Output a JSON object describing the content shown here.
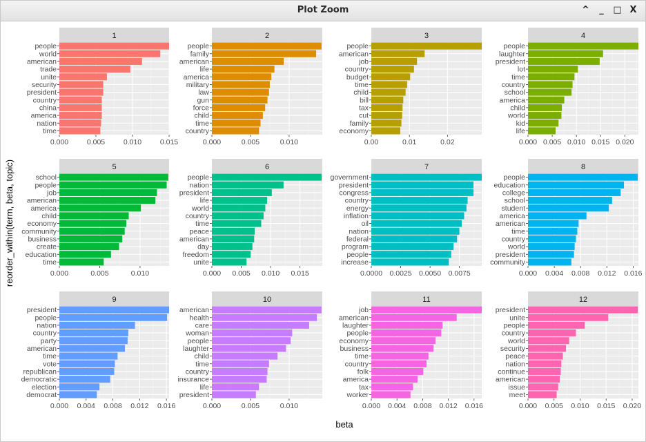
{
  "window": {
    "title": "Plot Zoom"
  },
  "controls": {
    "collapse": "^",
    "minimize": "_",
    "maximize": "□",
    "close": "X"
  },
  "chart_data": {
    "type": "bar",
    "orientation": "horizontal",
    "facet_layout": "3 rows x 4 columns, free scales",
    "xlabel": "beta",
    "ylabel": "reorder_within(term, beta, topic)",
    "grid": true,
    "legend": "none",
    "panels": [
      {
        "topic": "1",
        "color": "#F8766D",
        "xlim": [
          0,
          0.015
        ],
        "ticks": [
          {
            "v": 0,
            "label": "0.000"
          },
          {
            "v": 0.005,
            "label": "0.005"
          },
          {
            "v": 0.01,
            "label": "0.010"
          },
          {
            "v": 0.015,
            "label": "0.015"
          }
        ],
        "terms": [
          "people",
          "world",
          "american",
          "trade",
          "unite",
          "security",
          "president",
          "country",
          "china",
          "america",
          "nation",
          "time"
        ],
        "values": [
          0.0152,
          0.0138,
          0.0113,
          0.0097,
          0.0065,
          0.006,
          0.006,
          0.0058,
          0.0058,
          0.0058,
          0.0057,
          0.0056
        ]
      },
      {
        "topic": "2",
        "color": "#DE8C00",
        "xlim": [
          0,
          0.0143
        ],
        "ticks": [
          {
            "v": 0,
            "label": "0.000"
          },
          {
            "v": 0.005,
            "label": "0.005"
          },
          {
            "v": 0.01,
            "label": "0.010"
          }
        ],
        "terms": [
          "people",
          "family",
          "american",
          "life",
          "america",
          "military",
          "law",
          "gun",
          "force",
          "child",
          "time",
          "country"
        ],
        "values": [
          0.0142,
          0.0135,
          0.0093,
          0.0081,
          0.0077,
          0.0075,
          0.0074,
          0.0072,
          0.0069,
          0.0066,
          0.0063,
          0.0061
        ]
      },
      {
        "topic": "3",
        "color": "#B79F00",
        "xlim": [
          0,
          0.029
        ],
        "ticks": [
          {
            "v": 0,
            "label": "0.00"
          },
          {
            "v": 0.01,
            "label": "0.01"
          },
          {
            "v": 0.02,
            "label": "0.02"
          }
        ],
        "terms": [
          "people",
          "american",
          "job",
          "country",
          "budget",
          "time",
          "child",
          "bill",
          "tax",
          "cut",
          "family",
          "economy"
        ],
        "values": [
          0.029,
          0.014,
          0.012,
          0.0112,
          0.0102,
          0.0094,
          0.009,
          0.0084,
          0.0082,
          0.0081,
          0.0079,
          0.0076
        ]
      },
      {
        "topic": "4",
        "color": "#7CAE00",
        "xlim": [
          0,
          0.0228
        ],
        "ticks": [
          {
            "v": 0,
            "label": "0.000"
          },
          {
            "v": 0.005,
            "label": "0.005"
          },
          {
            "v": 0.01,
            "label": "0.010"
          },
          {
            "v": 0.015,
            "label": "0.015"
          },
          {
            "v": 0.02,
            "label": "0.020"
          }
        ],
        "terms": [
          "people",
          "laughter",
          "president",
          "lot",
          "time",
          "country",
          "school",
          "america",
          "child",
          "world",
          "kid",
          "life"
        ],
        "values": [
          0.0228,
          0.0155,
          0.0148,
          0.0103,
          0.0096,
          0.0092,
          0.009,
          0.0075,
          0.007,
          0.0069,
          0.0063,
          0.0057
        ]
      },
      {
        "topic": "5",
        "color": "#00BA38",
        "xlim": [
          0,
          0.0136
        ],
        "ticks": [
          {
            "v": 0,
            "label": "0.000"
          },
          {
            "v": 0.005,
            "label": "0.005"
          },
          {
            "v": 0.01,
            "label": "0.010"
          }
        ],
        "terms": [
          "school",
          "people",
          "job",
          "american",
          "america",
          "child",
          "economy",
          "community",
          "business",
          "create",
          "education",
          "time"
        ],
        "values": [
          0.0135,
          0.0133,
          0.0121,
          0.0119,
          0.0101,
          0.0086,
          0.0083,
          0.0081,
          0.0078,
          0.0074,
          0.0064,
          0.0055
        ]
      },
      {
        "topic": "6",
        "color": "#00C08B",
        "xlim": [
          0,
          0.0188
        ],
        "ticks": [
          {
            "v": 0,
            "label": "0.000"
          },
          {
            "v": 0.005,
            "label": "0.005"
          },
          {
            "v": 0.01,
            "label": "0.010"
          },
          {
            "v": 0.015,
            "label": "0.015"
          }
        ],
        "terms": [
          "people",
          "nation",
          "president",
          "life",
          "world",
          "country",
          "time",
          "peace",
          "american",
          "day",
          "freedom",
          "unite"
        ],
        "values": [
          0.0187,
          0.0122,
          0.0102,
          0.0094,
          0.0091,
          0.0088,
          0.0084,
          0.0073,
          0.0072,
          0.0069,
          0.0066,
          0.0059
        ]
      },
      {
        "topic": "7",
        "color": "#00BFC4",
        "xlim": [
          0,
          0.0094
        ],
        "ticks": [
          {
            "v": 0,
            "label": "0.0000"
          },
          {
            "v": 0.0025,
            "label": "0.0025"
          },
          {
            "v": 0.005,
            "label": "0.0050"
          },
          {
            "v": 0.0075,
            "label": "0.0075"
          }
        ],
        "terms": [
          "government",
          "president",
          "congress",
          "country",
          "energy",
          "inflation",
          "oil",
          "nation",
          "federal",
          "program",
          "people",
          "increase"
        ],
        "values": [
          0.0094,
          0.0087,
          0.0087,
          0.0082,
          0.0081,
          0.0079,
          0.0077,
          0.0075,
          0.0073,
          0.007,
          0.0068,
          0.0066
        ]
      },
      {
        "topic": "8",
        "color": "#00B4F0",
        "xlim": [
          0,
          0.0168
        ],
        "ticks": [
          {
            "v": 0,
            "label": "0.000"
          },
          {
            "v": 0.004,
            "label": "0.004"
          },
          {
            "v": 0.008,
            "label": "0.008"
          },
          {
            "v": 0.012,
            "label": "0.012"
          },
          {
            "v": 0.016,
            "label": "0.016"
          }
        ],
        "terms": [
          "people",
          "education",
          "college",
          "school",
          "student",
          "america",
          "american",
          "time",
          "country",
          "world",
          "president",
          "community"
        ],
        "values": [
          0.0167,
          0.0146,
          0.0141,
          0.0128,
          0.0123,
          0.0089,
          0.0077,
          0.0075,
          0.0073,
          0.0071,
          0.007,
          0.0066
        ]
      },
      {
        "topic": "9",
        "color": "#619CFF",
        "xlim": [
          0,
          0.0164
        ],
        "ticks": [
          {
            "v": 0,
            "label": "0.000"
          },
          {
            "v": 0.004,
            "label": "0.004"
          },
          {
            "v": 0.008,
            "label": "0.008"
          },
          {
            "v": 0.012,
            "label": "0.012"
          },
          {
            "v": 0.016,
            "label": "0.016"
          }
        ],
        "terms": [
          "president",
          "people",
          "nation",
          "country",
          "party",
          "american",
          "time",
          "vote",
          "republican",
          "democratic",
          "election",
          "democrat"
        ],
        "values": [
          0.0164,
          0.0161,
          0.0113,
          0.0103,
          0.0102,
          0.0098,
          0.0087,
          0.0083,
          0.0082,
          0.0076,
          0.006,
          0.0056
        ]
      },
      {
        "topic": "10",
        "color": "#C77CFF",
        "xlim": [
          0,
          0.0143
        ],
        "ticks": [
          {
            "v": 0,
            "label": "0.000"
          },
          {
            "v": 0.005,
            "label": "0.005"
          },
          {
            "v": 0.01,
            "label": "0.010"
          }
        ],
        "terms": [
          "american",
          "health",
          "care",
          "woman",
          "people",
          "laughter",
          "child",
          "time",
          "country",
          "insurance",
          "life",
          "president"
        ],
        "values": [
          0.0142,
          0.0136,
          0.0126,
          0.0104,
          0.0102,
          0.0096,
          0.0085,
          0.0074,
          0.0072,
          0.0071,
          0.0061,
          0.0057
        ]
      },
      {
        "topic": "11",
        "color": "#F564E3",
        "xlim": [
          0,
          0.0172
        ],
        "ticks": [
          {
            "v": 0,
            "label": "0.000"
          },
          {
            "v": 0.004,
            "label": "0.004"
          },
          {
            "v": 0.008,
            "label": "0.008"
          },
          {
            "v": 0.012,
            "label": "0.012"
          },
          {
            "v": 0.016,
            "label": "0.016"
          }
        ],
        "terms": [
          "job",
          "american",
          "laughter",
          "people",
          "economy",
          "business",
          "time",
          "country",
          "folk",
          "america",
          "tax",
          "worker"
        ],
        "values": [
          0.0172,
          0.0133,
          0.0111,
          0.0109,
          0.01,
          0.0097,
          0.0089,
          0.0086,
          0.0081,
          0.0072,
          0.0065,
          0.0061
        ]
      },
      {
        "topic": "12",
        "color": "#FF64B0",
        "xlim": [
          0,
          0.0212
        ],
        "ticks": [
          {
            "v": 0,
            "label": "0.000"
          },
          {
            "v": 0.005,
            "label": "0.005"
          },
          {
            "v": 0.01,
            "label": "0.010"
          },
          {
            "v": 0.015,
            "label": "0.015"
          },
          {
            "v": 0.02,
            "label": "0.020"
          }
        ],
        "terms": [
          "president",
          "unite",
          "people",
          "country",
          "world",
          "security",
          "peace",
          "nation",
          "continue",
          "american",
          "issue",
          "meet"
        ],
        "values": [
          0.0211,
          0.0154,
          0.0109,
          0.0092,
          0.0079,
          0.0073,
          0.0067,
          0.0064,
          0.0063,
          0.0061,
          0.0058,
          0.0055
        ]
      }
    ]
  }
}
